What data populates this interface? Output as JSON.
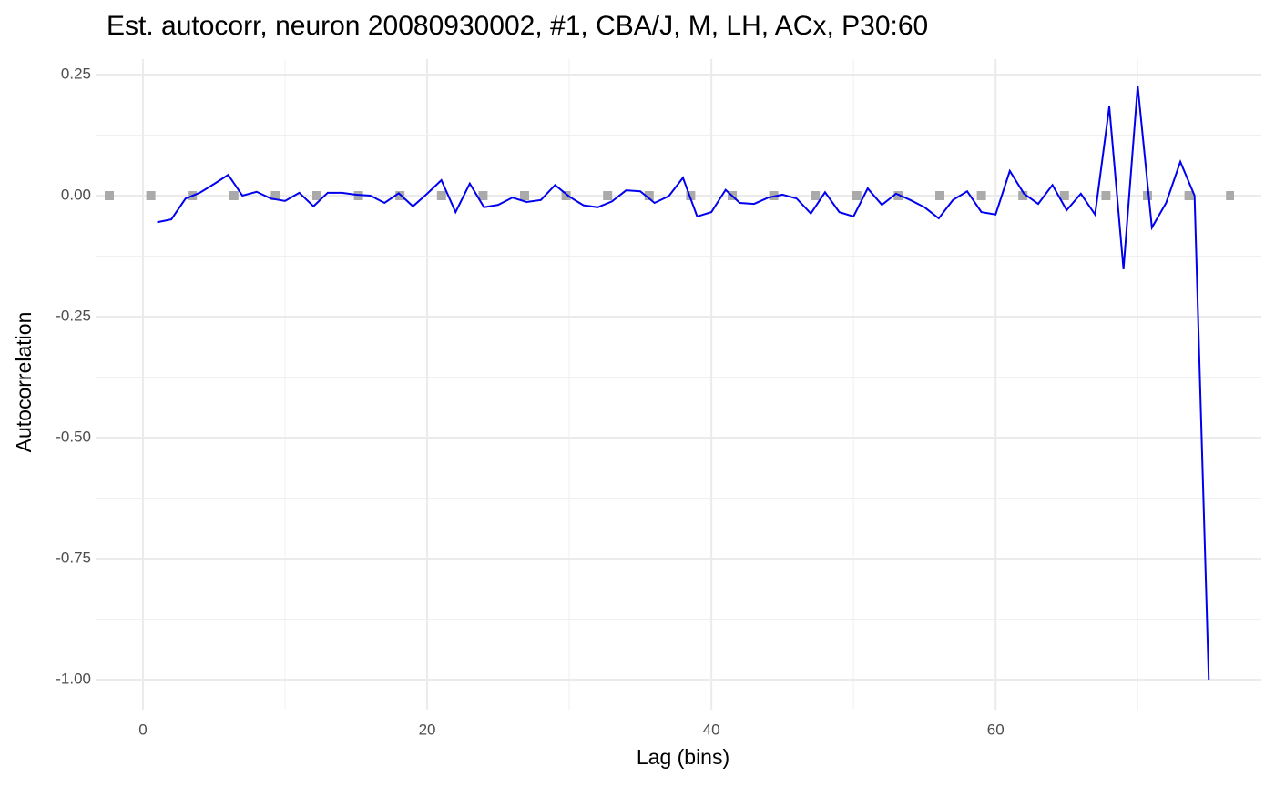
{
  "chart_data": {
    "type": "line",
    "title": "Est. autocorr, neuron 20080930002, #1, CBA/J, M, LH, ACx, P30:60",
    "x_label": "Lag (bins)",
    "y_label": "Autocorrelation",
    "x": [
      1,
      2,
      3,
      4,
      5,
      6,
      7,
      8,
      9,
      10,
      11,
      12,
      13,
      14,
      15,
      16,
      17,
      18,
      19,
      20,
      21,
      22,
      23,
      24,
      25,
      26,
      27,
      28,
      29,
      30,
      31,
      32,
      33,
      34,
      35,
      36,
      37,
      38,
      39,
      40,
      41,
      42,
      43,
      44,
      45,
      46,
      47,
      48,
      49,
      50,
      51,
      52,
      53,
      54,
      55,
      56,
      57,
      58,
      59,
      60,
      61,
      62,
      63,
      64,
      65,
      66,
      67,
      68,
      69,
      70,
      71,
      72,
      73,
      74,
      75
    ],
    "series": [
      {
        "name": "Autocorrelation",
        "color": "#0000ee",
        "values": [
          -0.055,
          -0.049,
          -0.006,
          0.006,
          0.024,
          0.043,
          0.0,
          0.008,
          -0.006,
          -0.011,
          0.006,
          -0.022,
          0.006,
          0.006,
          0.002,
          0.0,
          -0.015,
          0.005,
          -0.022,
          0.004,
          0.032,
          -0.034,
          0.025,
          -0.024,
          -0.019,
          -0.004,
          -0.013,
          -0.009,
          0.022,
          -0.002,
          -0.02,
          -0.024,
          -0.012,
          0.011,
          0.009,
          -0.015,
          -0.001,
          0.037,
          -0.043,
          -0.034,
          0.012,
          -0.015,
          -0.017,
          -0.004,
          0.002,
          -0.006,
          -0.037,
          0.007,
          -0.034,
          -0.043,
          0.015,
          -0.019,
          0.004,
          -0.009,
          -0.024,
          -0.047,
          -0.009,
          0.009,
          -0.034,
          -0.039,
          0.051,
          0.004,
          -0.017,
          0.022,
          -0.03,
          0.004,
          -0.039,
          0.184,
          -0.152,
          0.227,
          -0.066,
          -0.015,
          0.07,
          0.0,
          -1.0
        ]
      }
    ],
    "hline": {
      "value": 0,
      "color": "#aaaaaa"
    },
    "xlim": [
      -3.33,
      78.7
    ],
    "ylim": [
      -1.062,
      0.282
    ],
    "xticks": [
      0,
      20,
      40,
      60
    ],
    "yticks": [
      {
        "value": -1,
        "label": "-1.00"
      },
      {
        "value": -0.75,
        "label": "-0.75"
      },
      {
        "value": -0.5,
        "label": "-0.50"
      },
      {
        "value": -0.25,
        "label": "-0.25"
      },
      {
        "value": 0,
        "label": "0.00"
      },
      {
        "value": 0.25,
        "label": "0.25"
      }
    ],
    "grid": true
  }
}
